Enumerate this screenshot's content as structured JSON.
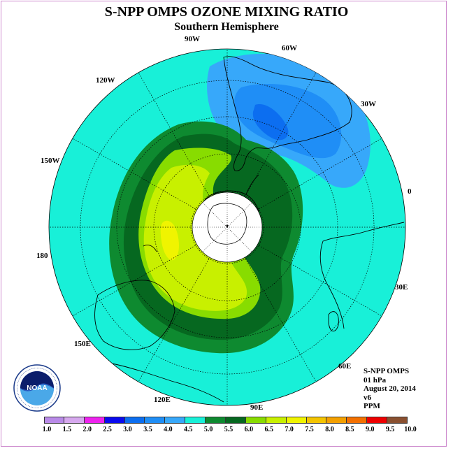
{
  "title": "S-NPP OMPS OZONE MIXING RATIO",
  "subtitle": "Southern Hemisphere",
  "longitude_labels": [
    "90W",
    "60W",
    "30W",
    "0",
    "30E",
    "60E",
    "90E",
    "120E",
    "150E",
    "180",
    "150W",
    "120W"
  ],
  "info": {
    "instrument": "S-NPP OMPS",
    "level": "01 hPa",
    "date": "August 20, 2014",
    "version": "v6",
    "units": "PPM"
  },
  "colorbar": {
    "labels": [
      "1.0",
      "1.5",
      "2.0",
      "2.5",
      "3.0",
      "3.5",
      "4.0",
      "4.5",
      "5.0",
      "5.5",
      "6.0",
      "6.5",
      "7.0",
      "7.5",
      "8.0",
      "8.5",
      "9.0",
      "9.5",
      "10.0"
    ],
    "colors": [
      "#b98ae8",
      "#d6a8ee",
      "#ee22ee",
      "#0a0aee",
      "#0c6ef0",
      "#1f8ef6",
      "#37a8fa",
      "#18f0d8",
      "#0e8a30",
      "#066820",
      "#88dc00",
      "#c8f000",
      "#f0f400",
      "#f4c400",
      "#f4a000",
      "#f47000",
      "#ee0000",
      "#8a5030"
    ]
  },
  "logo": {
    "name": "noaa-logo",
    "text": "NOAA"
  },
  "colors": {
    "ocean_background": "#18f0d8",
    "frame": "#cc88cc"
  }
}
